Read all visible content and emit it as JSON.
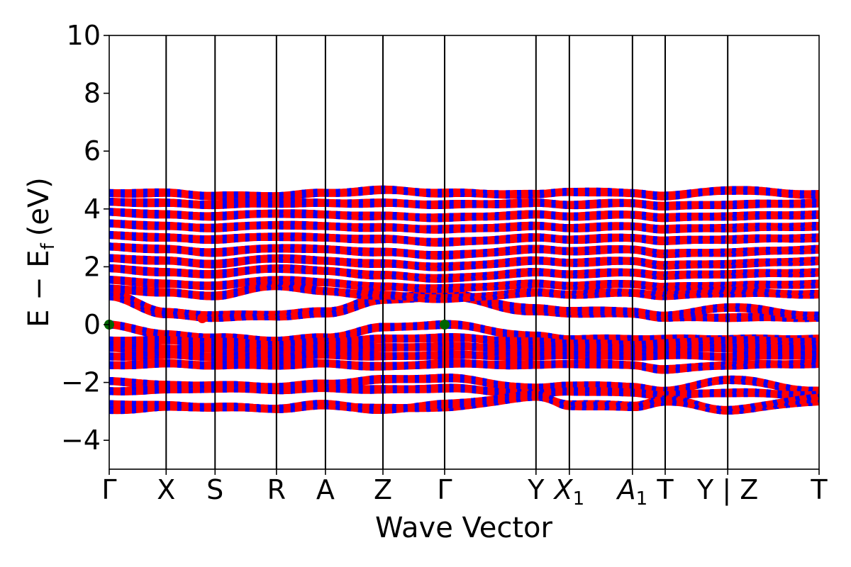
{
  "chart_data": {
    "type": "line",
    "title": "",
    "xlabel": "Wave Vector",
    "ylabel": "E − E",
    "ylabel_sub": "f",
    "ylabel_unit": "(eV)",
    "ylim": [
      -5,
      10
    ],
    "yticks": [
      -4,
      -2,
      0,
      2,
      4,
      6,
      8,
      10
    ],
    "ytick_labels": [
      "−4",
      "−2",
      "0",
      "2",
      "4",
      "6",
      "8",
      "10"
    ],
    "grid": false,
    "legend": "none",
    "colors": {
      "spin_up": "#ff0000",
      "spin_down": "#0000ff",
      "cbm": "#ff0000",
      "vbm": "#006400"
    },
    "kpath": [
      {
        "label": "Γ",
        "x": 0.0,
        "sub": ""
      },
      {
        "label": "X",
        "x": 0.0802,
        "sub": ""
      },
      {
        "label": "S",
        "x": 0.1491,
        "sub": ""
      },
      {
        "label": "R",
        "x": 0.2356,
        "sub": ""
      },
      {
        "label": "A",
        "x": 0.3046,
        "sub": ""
      },
      {
        "label": "Z",
        "x": 0.3856,
        "sub": ""
      },
      {
        "label": "Γ",
        "x": 0.4725,
        "sub": ""
      },
      {
        "label": "Y",
        "x": 0.6012,
        "sub": ""
      },
      {
        "label": "X",
        "x": 0.6482,
        "sub": "1"
      },
      {
        "label": "A",
        "x": 0.7371,
        "sub": "1"
      },
      {
        "label": "T",
        "x": 0.7832,
        "sub": ""
      },
      {
        "label": "Y | Z",
        "x": 0.8713,
        "sub": ""
      },
      {
        "label": "T",
        "x": 1.0,
        "sub": ""
      }
    ],
    "special_points": [
      {
        "name": "CBM",
        "x": 0.1311,
        "y": 0.22,
        "color": "#ff0000"
      },
      {
        "name": "VBM",
        "x": 0.0,
        "y": 0.0,
        "color": "#006400"
      },
      {
        "name": "VBM",
        "x": 0.4725,
        "y": 0.0,
        "color": "#006400"
      }
    ],
    "bands": [
      {
        "name": "cb1",
        "y": [
          0.98,
          0.35,
          0.25,
          0.3,
          0.38,
          0.85,
          0.98,
          0.45,
          0.4,
          0.38,
          0.25,
          0.25,
          0.25
        ]
      },
      {
        "name": "cb2",
        "y": [
          1.1,
          0.42,
          0.32,
          0.35,
          0.45,
          0.95,
          1.05,
          0.55,
          0.48,
          0.45,
          0.3,
          0.6,
          0.3
        ]
      },
      {
        "name": "cb3",
        "y": [
          1.25,
          1.1,
          1.0,
          1.35,
          1.15,
          1.0,
          0.9,
          1.1,
          1.05,
          1.1,
          1.0,
          1.1,
          1.05
        ]
      },
      {
        "name": "cb4",
        "y": [
          1.55,
          1.4,
          1.35,
          1.55,
          1.45,
          1.3,
          1.25,
          1.4,
          1.35,
          1.4,
          1.3,
          1.35,
          1.4
        ]
      },
      {
        "name": "cb5",
        "y": [
          1.95,
          1.8,
          1.75,
          1.95,
          1.85,
          1.7,
          1.6,
          1.8,
          1.75,
          1.8,
          1.7,
          1.75,
          1.8
        ]
      },
      {
        "name": "cb6",
        "y": [
          2.3,
          2.2,
          2.1,
          2.3,
          2.2,
          2.1,
          2.0,
          2.2,
          2.15,
          2.2,
          2.05,
          2.1,
          2.2
        ]
      },
      {
        "name": "cb7",
        "y": [
          2.7,
          2.6,
          2.5,
          2.65,
          2.6,
          2.5,
          2.4,
          2.6,
          2.55,
          2.6,
          2.45,
          2.5,
          2.6
        ]
      },
      {
        "name": "cb8",
        "y": [
          3.1,
          3.0,
          2.95,
          3.05,
          3.0,
          2.95,
          2.85,
          3.0,
          2.95,
          3.0,
          2.9,
          2.95,
          3.0
        ]
      },
      {
        "name": "cb9",
        "y": [
          3.5,
          3.4,
          3.35,
          3.45,
          3.4,
          3.35,
          3.3,
          3.4,
          3.35,
          3.4,
          3.3,
          3.35,
          3.4
        ]
      },
      {
        "name": "cb10",
        "y": [
          3.9,
          3.8,
          3.75,
          3.85,
          3.8,
          3.75,
          3.7,
          3.8,
          3.75,
          3.8,
          3.7,
          3.75,
          3.8
        ]
      },
      {
        "name": "cb11",
        "y": [
          4.25,
          4.2,
          4.15,
          4.2,
          4.2,
          4.2,
          4.15,
          4.2,
          4.15,
          4.2,
          4.1,
          4.15,
          4.2
        ]
      },
      {
        "name": "cb12",
        "y": [
          4.55,
          4.55,
          4.45,
          4.45,
          4.55,
          4.65,
          4.55,
          4.5,
          4.6,
          4.55,
          4.45,
          4.65,
          4.5
        ]
      },
      {
        "name": "vb1",
        "y": [
          0.0,
          -0.35,
          -0.45,
          -0.55,
          -0.45,
          -0.1,
          0.0,
          -0.4,
          -0.5,
          -0.5,
          -0.5,
          -0.5,
          -0.5
        ]
      },
      {
        "name": "vb2",
        "y": [
          -0.55,
          -0.55,
          -0.6,
          -0.7,
          -0.6,
          -0.5,
          -0.45,
          -0.6,
          -0.65,
          -0.7,
          -0.65,
          -0.55,
          -0.6
        ]
      },
      {
        "name": "vb3",
        "y": [
          -0.8,
          -0.85,
          -0.8,
          -0.9,
          -0.85,
          -0.8,
          -0.75,
          -0.85,
          -0.8,
          -0.85,
          -0.8,
          -0.8,
          -0.85
        ]
      },
      {
        "name": "vb4",
        "y": [
          -1.1,
          -1.05,
          -1.1,
          -1.15,
          -1.05,
          -1.1,
          -1.05,
          -1.1,
          -1.05,
          -1.1,
          -1.05,
          -1.1,
          -1.05
        ]
      },
      {
        "name": "vb5",
        "y": [
          -1.4,
          -1.35,
          -1.4,
          -1.4,
          -1.35,
          -1.45,
          -1.35,
          -1.4,
          -1.35,
          -1.4,
          -1.55,
          -1.4,
          -1.35
        ]
      },
      {
        "name": "vb6",
        "y": [
          -1.95,
          -2.1,
          -2.1,
          -2.15,
          -2.05,
          -1.9,
          -1.85,
          -2.2,
          -2.1,
          -2.15,
          -2.3,
          -1.9,
          -2.3
        ]
      },
      {
        "name": "vb7",
        "y": [
          -2.3,
          -2.25,
          -2.2,
          -2.25,
          -2.2,
          -2.25,
          -2.2,
          -2.4,
          -2.3,
          -2.35,
          -2.45,
          -2.35,
          -2.45
        ]
      },
      {
        "name": "vb8",
        "y": [
          -2.75,
          -2.8,
          -2.85,
          -2.9,
          -2.8,
          -2.9,
          -2.85,
          -2.5,
          -2.75,
          -2.8,
          -2.6,
          -2.95,
          -2.65
        ]
      },
      {
        "name": "vb9",
        "y": [
          -2.95,
          -2.85,
          -2.85,
          -2.9,
          -2.75,
          -2.95,
          -2.75,
          -2.45,
          -2.8,
          -2.85,
          -2.65,
          -2.95,
          -2.55
        ]
      }
    ]
  }
}
